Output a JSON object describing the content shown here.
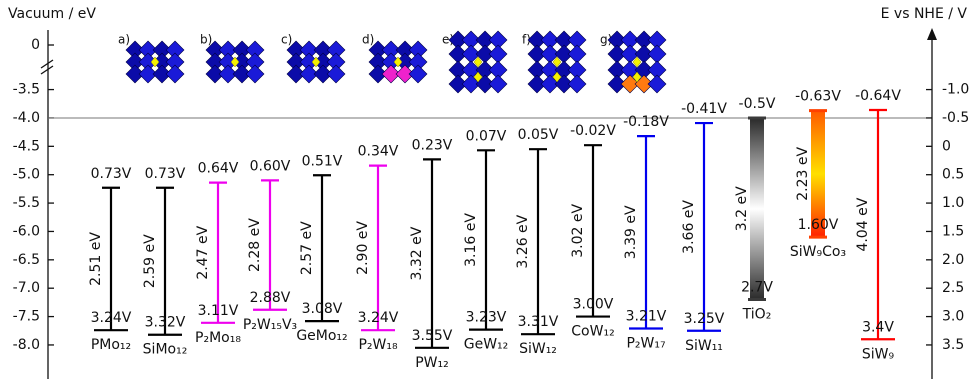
{
  "chart_data": {
    "type": "energy-levels",
    "y_title": "Vacuum / eV",
    "y2_title": "E vs NHE / V",
    "ylim": [
      -8.6,
      -2.6
    ],
    "yticks_above_break": [
      0
    ],
    "yticks": [
      -3.5,
      {
        "value": -4.0,
        "label": "-4.0"
      },
      -4.5,
      {
        "value": -5.0,
        "label": "-5.0"
      },
      -5.5,
      {
        "value": -6.0,
        "label": "-6.0"
      },
      -6.5,
      {
        "value": -7.0,
        "label": "-7.0"
      },
      -7.5,
      {
        "value": -8.0,
        "label": "-8.0"
      }
    ],
    "y2lim": [
      4.1,
      -1.9
    ],
    "y2ticks": [
      {
        "value": -1.0,
        "label": "-1.0"
      },
      -0.5,
      0,
      0.5,
      {
        "value": 1.0,
        "label": "1.0"
      },
      1.5,
      {
        "value": 2.0,
        "label": "2.0"
      },
      2.5,
      {
        "value": 3.0,
        "label": "3.0"
      },
      3.5
    ],
    "panel_labels": [
      "a)",
      "b)",
      "c)",
      "d)",
      "e)",
      "f)",
      "g)"
    ],
    "compounds": [
      {
        "name": "PMo₁₂",
        "color": "#000000",
        "lumo": 0.73,
        "lumo_label": "0.73V",
        "homo": 3.24,
        "homo_label": "3.24V",
        "gap": 2.51,
        "gap_label": "2.51 eV"
      },
      {
        "name": "SiMo₁₂",
        "color": "#000000",
        "lumo": 0.73,
        "lumo_label": "0.73V",
        "homo": 3.32,
        "homo_label": "3.32V",
        "gap": 2.59,
        "gap_label": "2.59 eV"
      },
      {
        "name": "P₂Mo₁₈",
        "color": "#ee00ee",
        "lumo": 0.64,
        "lumo_label": "0.64V",
        "homo": 3.11,
        "homo_label": "3.11V",
        "gap": 2.47,
        "gap_label": "2.47 eV"
      },
      {
        "name": "P₂W₁₅V₃",
        "color": "#ee00ee",
        "lumo": 0.6,
        "lumo_label": "0.60V",
        "homo": 2.88,
        "homo_label": "2.88V",
        "gap": 2.28,
        "gap_label": "2.28 eV"
      },
      {
        "name": "GeMo₁₂",
        "color": "#000000",
        "lumo": 0.51,
        "lumo_label": "0.51V",
        "homo": 3.08,
        "homo_label": "3.08V",
        "gap": 2.57,
        "gap_label": "2.57 eV"
      },
      {
        "name": "P₂W₁₈",
        "color": "#ee00ee",
        "lumo": 0.34,
        "lumo_label": "0.34V",
        "homo": 3.24,
        "homo_label": "3.24V",
        "gap": 2.9,
        "gap_label": "2.90 eV"
      },
      {
        "name": "PW₁₂",
        "color": "#000000",
        "lumo": 0.23,
        "lumo_label": "0.23V",
        "homo": 3.55,
        "homo_label": "3.55V",
        "gap": 3.32,
        "gap_label": "3.32 eV"
      },
      {
        "name": "GeW₁₂",
        "color": "#000000",
        "lumo": 0.07,
        "lumo_label": "0.07V",
        "homo": 3.23,
        "homo_label": "3.23V",
        "gap": 3.16,
        "gap_label": "3.16 eV"
      },
      {
        "name": "SiW₁₂",
        "color": "#000000",
        "lumo": 0.05,
        "lumo_label": "0.05V",
        "homo": 3.31,
        "homo_label": "3.31V",
        "gap": 3.26,
        "gap_label": "3.26 eV"
      },
      {
        "name": "CoW₁₂",
        "color": "#000000",
        "lumo": -0.02,
        "lumo_label": "-0.02V",
        "homo": 3.0,
        "homo_label": "3.00V",
        "gap": 3.02,
        "gap_label": "3.02 eV"
      },
      {
        "name": "P₂W₁₇",
        "color": "#0000ee",
        "lumo": -0.18,
        "lumo_label": "-0.18V",
        "homo": 3.21,
        "homo_label": "3.21V",
        "gap": 3.39,
        "gap_label": "3.39 eV"
      },
      {
        "name": "SiW₁₁",
        "color": "#0000ee",
        "lumo": -0.41,
        "lumo_label": "-0.41V",
        "homo": 3.25,
        "homo_label": "3.25V",
        "gap": 3.66,
        "gap_label": "3.66 eV"
      },
      {
        "name": "TiO₂",
        "color": "#3a3a3a",
        "gradient": [
          "#2a2a2a",
          "#ffffff",
          "#2a2a2a"
        ],
        "lumo": -0.5,
        "lumo_label": "-0.5V",
        "homo": 2.7,
        "homo_label": "2.7V",
        "gap": 3.2,
        "gap_label": "3.2 eV"
      },
      {
        "name": "SiW₉Co₃",
        "color": "#ff4000",
        "gradient": [
          "#ff5a00",
          "#ffe000",
          "#ff2000"
        ],
        "lumo": -0.63,
        "lumo_label": "-0.63V",
        "homo": 1.6,
        "homo_label": "1.60V",
        "gap": 2.23,
        "gap_label": "2.23 eV"
      },
      {
        "name": "SiW₉",
        "color": "#ff0000",
        "lumo": -0.64,
        "lumo_label": "-0.64V",
        "homo": 3.4,
        "homo_label": "3.4V",
        "gap": 4.04,
        "gap_label": "4.04 eV"
      }
    ]
  }
}
